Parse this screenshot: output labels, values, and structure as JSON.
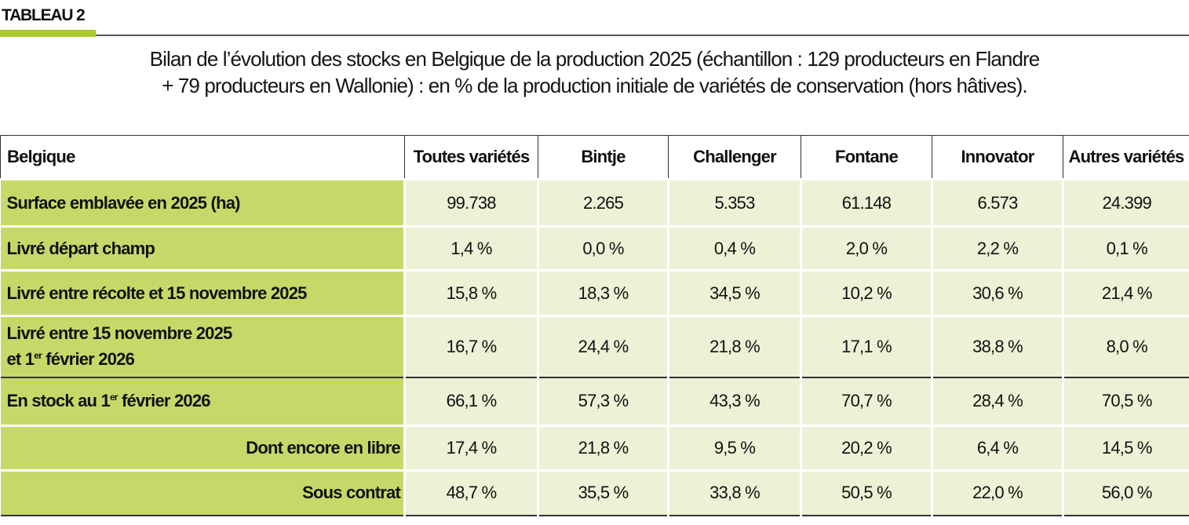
{
  "tag": "TABLEAU 2",
  "title_line1": "Bilan de l’évolution des stocks en Belgique de la production 2025 (échantillon : 129 producteurs en Flandre",
  "title_line2": "+ 79 producteurs en Wallonie) : en % de la production initiale de variétés de conservation (hors hâtives).",
  "columns": [
    "Belgique",
    "Toutes variétés",
    "Bintje",
    "Challenger",
    "Fontane",
    "Innovator",
    "Autres variétés"
  ],
  "rows": [
    {
      "label": "Surface emblavée en 2025 (ha)",
      "values": [
        "99.738",
        "2.265",
        "5.353",
        "61.148",
        "6.573",
        "24.399"
      ]
    },
    {
      "label": "Livré départ champ",
      "values": [
        "1,4 %",
        "0,0 %",
        "0,4 %",
        "2,0 %",
        "2,2 %",
        "0,1 %"
      ]
    },
    {
      "label": "Livré entre récolte et 15 novembre 2025",
      "values": [
        "15,8 %",
        "18,3 %",
        "34,5 %",
        "10,2 %",
        "30,6 %",
        "21,4 %"
      ]
    },
    {
      "label_line1": "Livré entre 15 novembre 2025",
      "label_pre": "et 1",
      "label_sup": "er",
      "label_post": " février 2026",
      "values": [
        "16,7 %",
        "24,4 %",
        "21,8 %",
        "17,1 %",
        "38,8 %",
        "8,0 %"
      ]
    },
    {
      "label_pre": "En stock au 1",
      "label_sup": "er",
      "label_post": " février 2026",
      "values": [
        "66,1 %",
        "57,3 %",
        "43,3 %",
        "70,7 %",
        "28,4 %",
        "70,5 %"
      ]
    },
    {
      "label": "Dont encore en libre",
      "values": [
        "17,4 %",
        "21,8 %",
        "9,5 %",
        "20,2 %",
        "6,4 %",
        "14,5 %"
      ]
    },
    {
      "label": "Sous contrat",
      "values": [
        "48,7 %",
        "35,5 %",
        "33,8 %",
        "50,5 %",
        "22,0 %",
        "56,0 %"
      ]
    }
  ],
  "colors": {
    "accent": "#a9c92e",
    "label_bg": "#c6d968",
    "cell_bg": "#eef1d6"
  }
}
